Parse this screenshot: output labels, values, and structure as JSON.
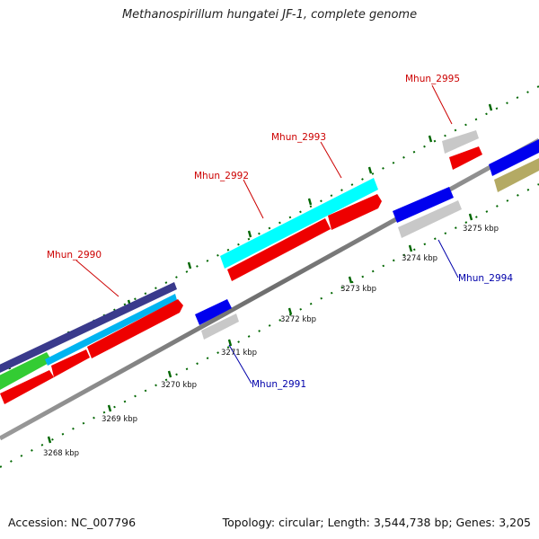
{
  "title": "Methanospirillum hungatei JF-1, complete genome",
  "footer": {
    "accession": "Accession: NC_007796",
    "summary": "Topology: circular; Length: 3,544,738 bp; Genes: 3,205"
  },
  "ticks": [
    {
      "label": "3268 kbp"
    },
    {
      "label": "3269 kbp"
    },
    {
      "label": "3270 kbp"
    },
    {
      "label": "3271 kbp"
    },
    {
      "label": "3272 kbp"
    },
    {
      "label": "3273 kbp"
    },
    {
      "label": "3274 kbp"
    },
    {
      "label": "3275 kbp"
    }
  ],
  "genes": [
    {
      "label": "Mhun_2990",
      "label_color": "#cc0000"
    },
    {
      "label": "Mhun_2991",
      "label_color": "#0000aa"
    },
    {
      "label": "Mhun_2992",
      "label_color": "#cc0000"
    },
    {
      "label": "Mhun_2993",
      "label_color": "#cc0000"
    },
    {
      "label": "Mhun_2994",
      "label_color": "#0000aa"
    },
    {
      "label": "Mhun_2995",
      "label_color": "#cc0000"
    }
  ],
  "colors": {
    "cds_red": "#ff0000",
    "gene_blue": "#0000ee",
    "gene_grey": "#c8c8c8",
    "cyan": "#00ffff",
    "sky": "#00b4f0",
    "navy": "#3a3a8c",
    "green": "#33cc33",
    "olive": "#b4aa64",
    "backbone": "#808080",
    "tick": "#006600"
  }
}
